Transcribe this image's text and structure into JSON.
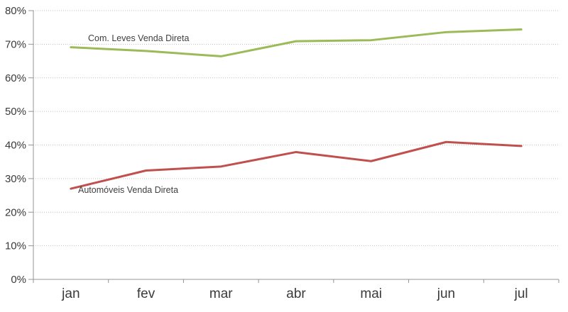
{
  "chart_data": {
    "type": "line",
    "categories": [
      "jan",
      "fev",
      "mar",
      "abr",
      "mai",
      "jun",
      "jul"
    ],
    "series": [
      {
        "name": "Com. Leves Venda Direta",
        "color": "#9BBB59",
        "values": [
          69.1,
          68.0,
          66.4,
          70.9,
          71.2,
          73.6,
          74.4
        ]
      },
      {
        "name": "Automóveis Venda Direta",
        "color": "#C0504D",
        "values": [
          27.0,
          32.4,
          33.6,
          37.9,
          35.2,
          40.9,
          39.7
        ]
      }
    ],
    "title": "",
    "xlabel": "",
    "ylabel": "",
    "ylim": [
      0,
      80
    ],
    "ytick_step": 10,
    "ytick_labels": [
      "0%",
      "10%",
      "20%",
      "30%",
      "40%",
      "50%",
      "60%",
      "70%",
      "80%"
    ],
    "grid": true,
    "legend_position": "inline-labels-on-plot",
    "colors": {
      "gridline": "#bfbfbf",
      "axis": "#949494",
      "tick_text": "#3a3a3a",
      "series_label_text": "#3f3f3f",
      "background": "#ffffff"
    }
  }
}
